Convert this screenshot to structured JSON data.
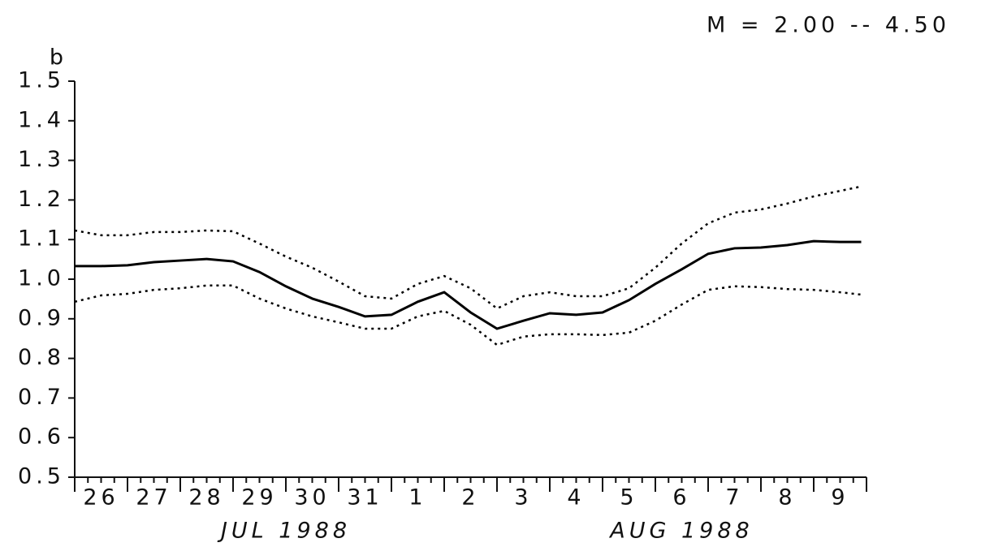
{
  "chart_data": {
    "type": "line",
    "title": "M = 2.00 -- 4.50",
    "y_label": "b",
    "x_groups": [
      {
        "label": "JUL 1988",
        "center": 4
      },
      {
        "label": "AUG 1988",
        "center": 11.5
      }
    ],
    "x": [
      0,
      0.5,
      1,
      1.5,
      2,
      2.5,
      3,
      3.5,
      4,
      4.5,
      5,
      5.5,
      6,
      6.5,
      7,
      7.5,
      8,
      8.5,
      9,
      9.5,
      10,
      10.5,
      11,
      11.5,
      12,
      12.5,
      13,
      13.5,
      14,
      14.5,
      14.9
    ],
    "series": [
      {
        "color": "#000000",
        "dash": false,
        "values": [
          1.033,
          1.033,
          1.035,
          1.043,
          1.047,
          1.051,
          1.045,
          1.018,
          0.982,
          0.951,
          0.93,
          0.906,
          0.91,
          0.943,
          0.967,
          0.916,
          0.875,
          0.895,
          0.914,
          0.91,
          0.916,
          0.947,
          0.988,
          1.025,
          1.064,
          1.078,
          1.08,
          1.086,
          1.096,
          1.094,
          1.094
        ]
      },
      {
        "color": "#000000",
        "dash": true,
        "values": [
          1.123,
          1.111,
          1.111,
          1.119,
          1.119,
          1.123,
          1.121,
          1.09,
          1.057,
          1.029,
          0.994,
          0.957,
          0.951,
          0.988,
          1.008,
          0.977,
          0.926,
          0.957,
          0.967,
          0.957,
          0.957,
          0.977,
          1.029,
          1.09,
          1.141,
          1.168,
          1.176,
          1.191,
          1.209,
          1.223,
          1.234
        ]
      },
      {
        "color": "#000000",
        "dash": true,
        "values": [
          0.943,
          0.959,
          0.963,
          0.973,
          0.977,
          0.984,
          0.984,
          0.951,
          0.926,
          0.906,
          0.891,
          0.875,
          0.875,
          0.906,
          0.92,
          0.885,
          0.834,
          0.855,
          0.861,
          0.861,
          0.859,
          0.865,
          0.895,
          0.936,
          0.973,
          0.982,
          0.98,
          0.975,
          0.973,
          0.967,
          0.961
        ]
      }
    ],
    "xlim": [
      0,
      15
    ],
    "xticks": [
      {
        "value": 0.5,
        "label": "26"
      },
      {
        "value": 1.5,
        "label": "27"
      },
      {
        "value": 2.5,
        "label": "28"
      },
      {
        "value": 3.5,
        "label": "29"
      },
      {
        "value": 4.5,
        "label": "30"
      },
      {
        "value": 5.5,
        "label": "31"
      },
      {
        "value": 6.5,
        "label": "1"
      },
      {
        "value": 7.5,
        "label": "2"
      },
      {
        "value": 8.5,
        "label": "3"
      },
      {
        "value": 9.5,
        "label": "4"
      },
      {
        "value": 10.5,
        "label": "5"
      },
      {
        "value": 11.5,
        "label": "6"
      },
      {
        "value": 12.5,
        "label": "7"
      },
      {
        "value": 13.5,
        "label": "8"
      },
      {
        "value": 14.5,
        "label": "9"
      }
    ],
    "ylim": [
      0.5,
      1.5
    ],
    "yticks": [
      0.5,
      0.6,
      0.7,
      0.8,
      0.9,
      {
        "value": 1,
        "label": "1.0"
      },
      1.1,
      1.2,
      1.3,
      1.4,
      1.5
    ]
  }
}
